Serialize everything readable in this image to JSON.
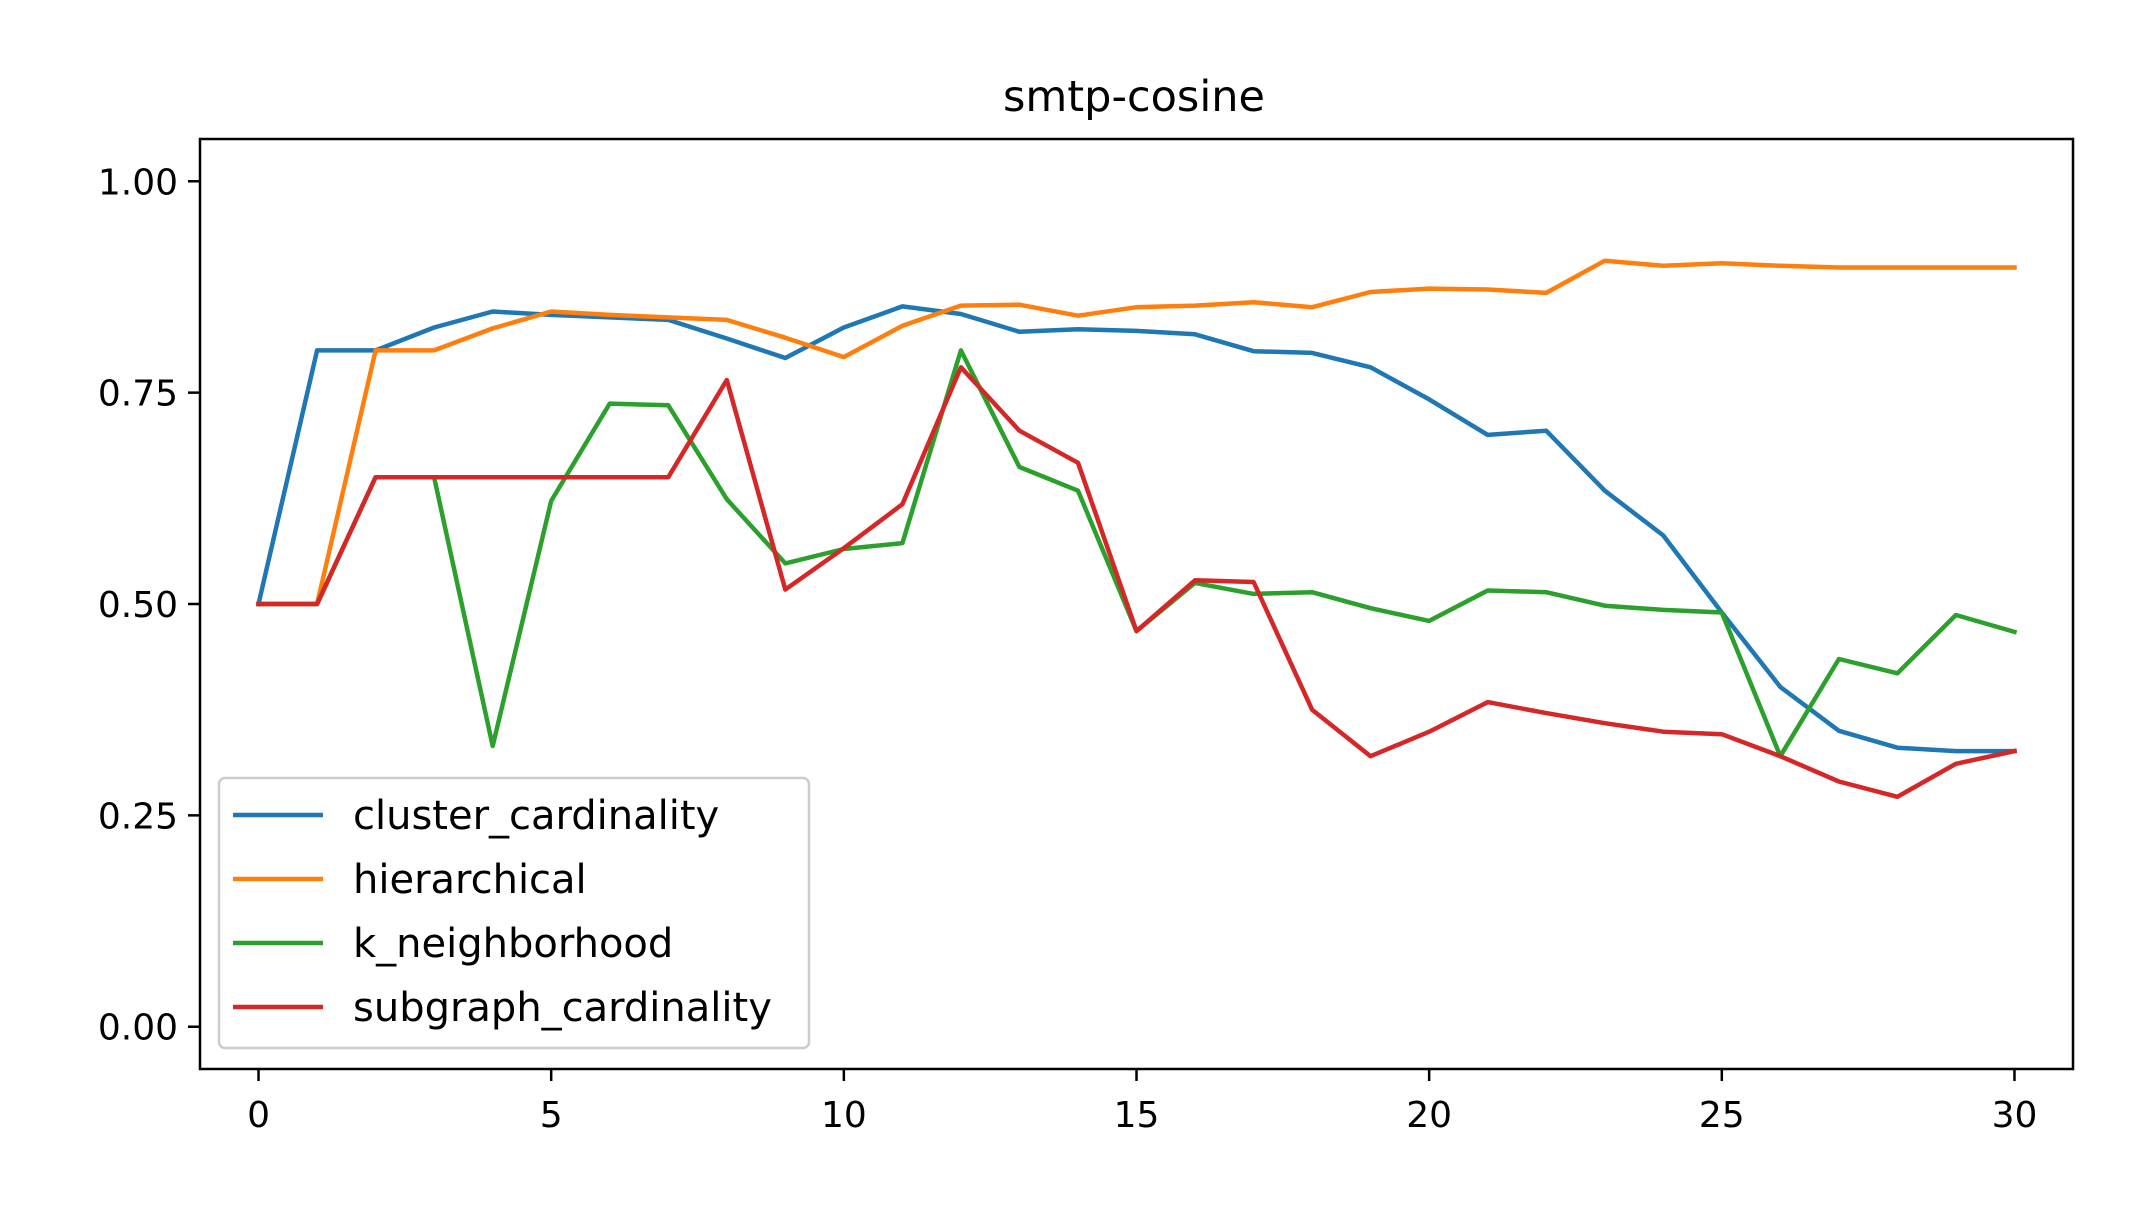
{
  "chart_data": {
    "type": "line",
    "title": "smtp-cosine",
    "xlabel": "",
    "ylabel": "",
    "xlim": [
      -1,
      31
    ],
    "ylim": [
      -0.05,
      1.05
    ],
    "xticks": [
      0,
      5,
      10,
      15,
      20,
      25,
      30
    ],
    "xtick_labels": [
      "0",
      "5",
      "10",
      "15",
      "20",
      "25",
      "30"
    ],
    "yticks": [
      0.0,
      0.25,
      0.5,
      0.75,
      1.0
    ],
    "ytick_labels": [
      "0.00",
      "0.25",
      "0.50",
      "0.75",
      "1.00"
    ],
    "grid": false,
    "legend_position": "lower-left",
    "x": [
      0,
      1,
      2,
      3,
      4,
      5,
      6,
      7,
      8,
      9,
      10,
      11,
      12,
      13,
      14,
      15,
      16,
      17,
      18,
      19,
      20,
      21,
      22,
      23,
      24,
      25,
      26,
      27,
      28,
      29,
      30
    ],
    "series": [
      {
        "name": "cluster_cardinality",
        "color": "#1f77b4",
        "values": [
          0.5,
          0.8,
          0.8,
          0.827,
          0.846,
          0.842,
          0.839,
          0.836,
          0.814,
          0.791,
          0.827,
          0.852,
          0.843,
          0.822,
          0.825,
          0.823,
          0.819,
          0.799,
          0.797,
          0.78,
          0.742,
          0.7,
          0.705,
          0.634,
          0.581,
          0.49,
          0.402,
          0.35,
          0.33,
          0.326,
          0.326
        ]
      },
      {
        "name": "hierarchical",
        "color": "#ff7f0e",
        "values": [
          0.5,
          0.5,
          0.8,
          0.8,
          0.826,
          0.846,
          0.842,
          0.839,
          0.836,
          0.815,
          0.792,
          0.829,
          0.853,
          0.854,
          0.841,
          0.851,
          0.853,
          0.857,
          0.851,
          0.869,
          0.873,
          0.872,
          0.868,
          0.906,
          0.9,
          0.903,
          0.9,
          0.898,
          0.898,
          0.898,
          0.898
        ]
      },
      {
        "name": "k_neighborhood",
        "color": "#2ca02c",
        "values": [
          0.5,
          0.5,
          0.65,
          0.65,
          0.332,
          0.622,
          0.737,
          0.735,
          0.624,
          0.548,
          0.565,
          0.572,
          0.8,
          0.662,
          0.634,
          0.468,
          0.525,
          0.512,
          0.514,
          0.495,
          0.48,
          0.516,
          0.514,
          0.498,
          0.493,
          0.49,
          0.32,
          0.435,
          0.418,
          0.487,
          0.467
        ]
      },
      {
        "name": "subgraph_cardinality",
        "color": "#d62728",
        "values": [
          0.5,
          0.5,
          0.65,
          0.65,
          0.65,
          0.65,
          0.65,
          0.65,
          0.765,
          0.517,
          0.566,
          0.618,
          0.78,
          0.705,
          0.667,
          0.468,
          0.528,
          0.526,
          0.375,
          0.32,
          0.349,
          0.384,
          0.371,
          0.359,
          0.349,
          0.346,
          0.32,
          0.29,
          0.272,
          0.311,
          0.326
        ]
      }
    ]
  }
}
